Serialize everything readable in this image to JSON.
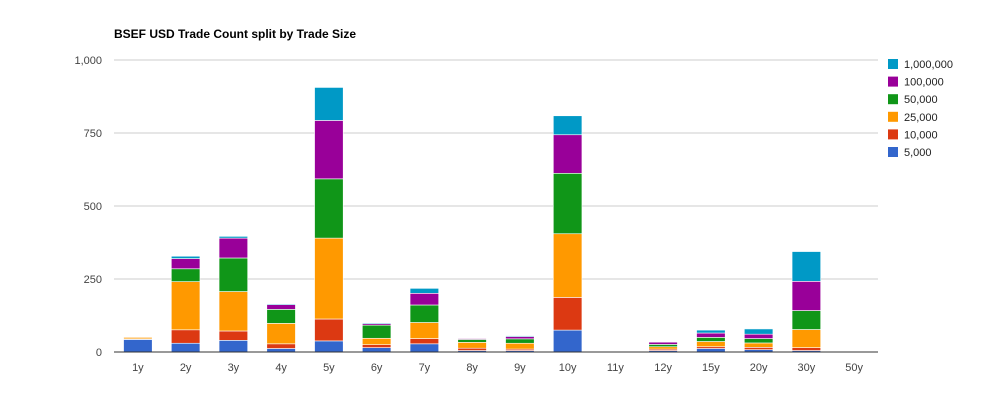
{
  "chart_data": {
    "type": "bar",
    "stacked": true,
    "title": "BSEF USD Trade Count split by Trade Size",
    "xlabel": "",
    "ylabel": "",
    "ylim": [
      0,
      1000
    ],
    "yticks": [
      "0",
      "250",
      "500",
      "750",
      "1,000"
    ],
    "grid": true,
    "legend_position": "right",
    "categories": [
      "1y",
      "2y",
      "3y",
      "4y",
      "5y",
      "6y",
      "7y",
      "8y",
      "9y",
      "10y",
      "11y",
      "12y",
      "15y",
      "20y",
      "30y",
      "50y"
    ],
    "series": [
      {
        "name": "5,000",
        "color": "#3366cc",
        "values": [
          43,
          30,
          40,
          12,
          38,
          15,
          28,
          5,
          5,
          75,
          0,
          5,
          12,
          8,
          5,
          0
        ]
      },
      {
        "name": "10,000",
        "color": "#dc3912",
        "values": [
          2,
          46,
          32,
          16,
          75,
          10,
          18,
          8,
          5,
          112,
          0,
          5,
          6,
          8,
          10,
          0
        ]
      },
      {
        "name": "25,000",
        "color": "#ff9900",
        "values": [
          5,
          165,
          135,
          70,
          277,
          22,
          55,
          20,
          20,
          218,
          0,
          8,
          18,
          15,
          62,
          0
        ]
      },
      {
        "name": "50,000",
        "color": "#109618",
        "values": [
          0,
          44,
          115,
          48,
          203,
          45,
          60,
          10,
          15,
          207,
          0,
          8,
          14,
          15,
          65,
          0
        ]
      },
      {
        "name": "100,000",
        "color": "#990099",
        "values": [
          0,
          35,
          68,
          16,
          200,
          5,
          40,
          3,
          8,
          132,
          0,
          8,
          15,
          15,
          100,
          0
        ]
      },
      {
        "name": "1,000,000",
        "color": "#0099c6",
        "values": [
          0,
          8,
          6,
          3,
          113,
          3,
          17,
          0,
          3,
          65,
          0,
          1,
          10,
          18,
          102,
          0
        ]
      }
    ]
  }
}
